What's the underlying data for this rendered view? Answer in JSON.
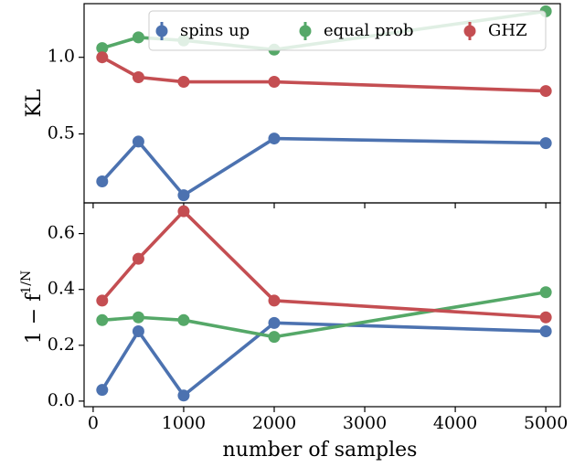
{
  "chart_data": [
    {
      "type": "line",
      "panel": "top",
      "xlabel": "",
      "ylabel": "KL",
      "x": [
        100,
        500,
        1000,
        2000,
        5000
      ],
      "xlim": [
        -100,
        5160
      ],
      "ylim": [
        0.05,
        1.35
      ],
      "yticks": [
        0.5,
        1.0
      ],
      "ytick_labels": [
        "0.5",
        "1.0"
      ],
      "xtick_labels_shown": false,
      "grid": false,
      "legend": {
        "placement": "top-center",
        "entries": [
          "spins up",
          "equal prob",
          "GHZ"
        ]
      },
      "series": [
        {
          "name": "spins up",
          "color": "#4c72b0",
          "values": [
            0.19,
            0.45,
            0.1,
            0.47,
            0.44
          ]
        },
        {
          "name": "equal prob",
          "color": "#55a868",
          "values": [
            1.06,
            1.13,
            1.11,
            1.05,
            1.3
          ]
        },
        {
          "name": "GHZ",
          "color": "#c44e52",
          "values": [
            1.0,
            0.87,
            0.84,
            0.84,
            0.78
          ]
        }
      ]
    },
    {
      "type": "line",
      "panel": "bottom",
      "xlabel": "number of samples",
      "ylabel_main": "1 − f",
      "ylabel_sup": "1/N",
      "x": [
        100,
        500,
        1000,
        2000,
        5000
      ],
      "xlim": [
        -100,
        5160
      ],
      "ylim": [
        -0.02,
        0.71
      ],
      "xticks": [
        0,
        1000,
        2000,
        3000,
        4000,
        5000
      ],
      "xtick_labels": [
        "0",
        "1000",
        "2000",
        "3000",
        "4000",
        "5000"
      ],
      "yticks": [
        0.0,
        0.2,
        0.4,
        0.6
      ],
      "ytick_labels": [
        "0.0",
        "0.2",
        "0.4",
        "0.6"
      ],
      "grid": false,
      "series": [
        {
          "name": "spins up",
          "color": "#4c72b0",
          "values": [
            0.04,
            0.25,
            0.02,
            0.28,
            0.25
          ]
        },
        {
          "name": "equal prob",
          "color": "#55a868",
          "values": [
            0.29,
            0.3,
            0.29,
            0.23,
            0.39
          ]
        },
        {
          "name": "GHZ",
          "color": "#c44e52",
          "values": [
            0.36,
            0.51,
            0.68,
            0.36,
            0.3
          ]
        }
      ]
    }
  ]
}
